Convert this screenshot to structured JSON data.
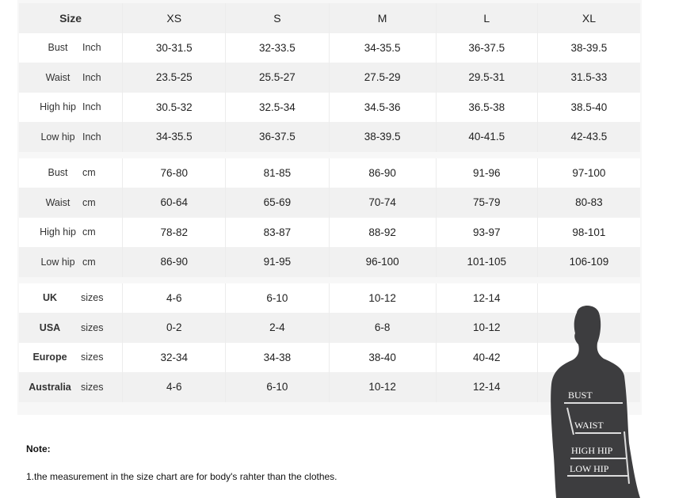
{
  "header": {
    "label": "Size",
    "sizes": [
      "XS",
      "S",
      "M",
      "L",
      "XL"
    ]
  },
  "inch_rows": [
    {
      "name": "Bust",
      "unit": "Inch",
      "values": [
        "30-31.5",
        "32-33.5",
        "34-35.5",
        "36-37.5",
        "38-39.5"
      ]
    },
    {
      "name": "Waist",
      "unit": "Inch",
      "values": [
        "23.5-25",
        "25.5-27",
        "27.5-29",
        "29.5-31",
        "31.5-33"
      ]
    },
    {
      "name": "High hip",
      "unit": "Inch",
      "values": [
        "30.5-32",
        "32.5-34",
        "34.5-36",
        "36.5-38",
        "38.5-40"
      ]
    },
    {
      "name": "Low hip",
      "unit": "Inch",
      "values": [
        "34-35.5",
        "36-37.5",
        "38-39.5",
        "40-41.5",
        "42-43.5"
      ]
    }
  ],
  "cm_rows": [
    {
      "name": "Bust",
      "unit": "cm",
      "values": [
        "76-80",
        "81-85",
        "86-90",
        "91-96",
        "97-100"
      ]
    },
    {
      "name": "Waist",
      "unit": "cm",
      "values": [
        "60-64",
        "65-69",
        "70-74",
        "75-79",
        "80-83"
      ]
    },
    {
      "name": "High hip",
      "unit": "cm",
      "values": [
        "78-82",
        "83-87",
        "88-92",
        "93-97",
        "98-101"
      ]
    },
    {
      "name": "Low hip",
      "unit": "cm",
      "values": [
        "86-90",
        "91-95",
        "96-100",
        "101-105",
        "106-109"
      ]
    }
  ],
  "size_rows": [
    {
      "name": "UK",
      "unit": "sizes",
      "values": [
        "4-6",
        "6-10",
        "10-12",
        "12-14",
        ""
      ]
    },
    {
      "name": "USA",
      "unit": "sizes",
      "values": [
        "0-2",
        "2-4",
        "6-8",
        "10-12",
        ""
      ]
    },
    {
      "name": "Europe",
      "unit": "sizes",
      "values": [
        "32-34",
        "34-38",
        "38-40",
        "40-42",
        ""
      ]
    },
    {
      "name": "Australia",
      "unit": "sizes",
      "values": [
        "4-6",
        "6-10",
        "10-12",
        "12-14",
        ""
      ]
    }
  ],
  "figure": {
    "labels": [
      "BUST",
      "WAIST",
      "HIGH HIP",
      "LOW HIP"
    ],
    "color": "#3d3d3f"
  },
  "note": {
    "title": "Note:",
    "text": "1.the measurement in the size chart are for body's rahter than the clothes."
  }
}
